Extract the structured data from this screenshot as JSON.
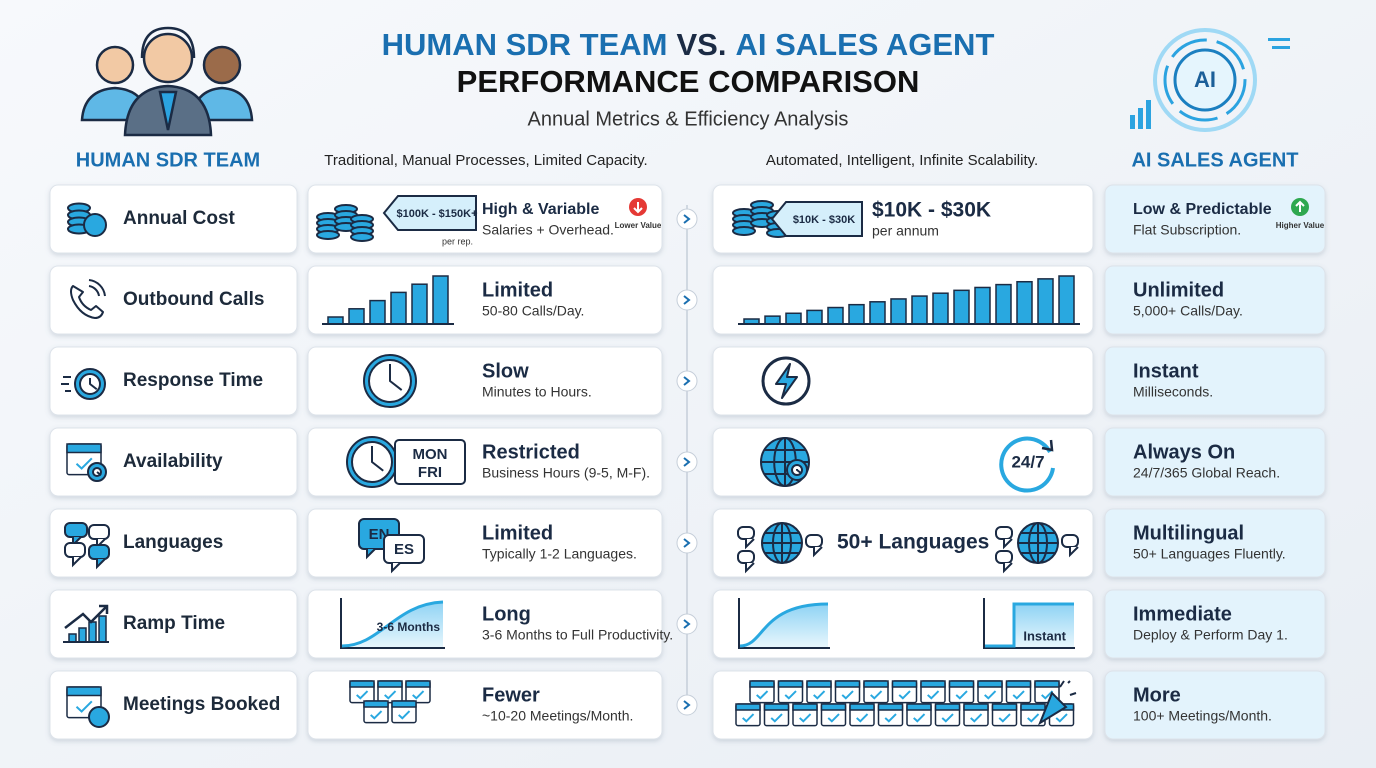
{
  "header": {
    "title_left": "HUMAN SDR TEAM",
    "title_vs": "VS.",
    "title_right": "AI SALES AGENT",
    "title_line2": "PERFORMANCE COMPARISON",
    "subtitle": "Annual Metrics & Efficiency Analysis",
    "ai_badge": "AI"
  },
  "columns": {
    "human_heading": "HUMAN SDR TEAM",
    "human_tagline": "Traditional, Manual Processes, Limited Capacity.",
    "ai_tagline": "Automated, Intelligent, Infinite Scalability.",
    "ai_heading": "AI SALES AGENT"
  },
  "rows": [
    {
      "metric": "Annual Cost",
      "human": {
        "title": "High & Variable",
        "detail": "Salaries + Overhead.",
        "tag": "$100K - $150K+",
        "tag_note": "per rep.",
        "badge": "Lower Value"
      },
      "ai": {
        "tag": "$10K - $30K",
        "figure": "$10K - $30K",
        "figure_note": "per annum"
      },
      "summary": {
        "title": "Low & Predictable",
        "detail": "Flat Subscription.",
        "badge": "Higher Value"
      }
    },
    {
      "metric": "Outbound Calls",
      "human": {
        "title": "Limited",
        "detail": "50-80 Calls/Day."
      },
      "summary": {
        "title": "Unlimited",
        "detail": "5,000+ Calls/Day."
      }
    },
    {
      "metric": "Response Time",
      "human": {
        "title": "Slow",
        "detail": "Minutes to Hours."
      },
      "summary": {
        "title": "Instant",
        "detail": "Milliseconds."
      }
    },
    {
      "metric": "Availability",
      "human": {
        "title": "Restricted",
        "detail": "Business Hours (9-5, M-F).",
        "icon_labels": [
          "MON",
          "FRI"
        ]
      },
      "ai": {
        "icon_label": "24/7"
      },
      "summary": {
        "title": "Always On",
        "detail": "24/7/365 Global Reach."
      }
    },
    {
      "metric": "Languages",
      "human": {
        "title": "Limited",
        "detail": "Typically 1-2 Languages.",
        "icon_labels": [
          "EN",
          "ES"
        ]
      },
      "ai": {
        "figure": "50+ Languages"
      },
      "summary": {
        "title": "Multilingual",
        "detail": "50+ Languages Fluently."
      }
    },
    {
      "metric": "Ramp Time",
      "human": {
        "title": "Long",
        "detail": "3-6 Months to Full Productivity.",
        "icon_label": "3-6 Months"
      },
      "ai": {
        "icon_label": "Instant"
      },
      "summary": {
        "title": "Immediate",
        "detail": "Deploy & Perform Day 1."
      }
    },
    {
      "metric": "Meetings Booked",
      "human": {
        "title": "Fewer",
        "detail": "~10-20 Meetings/Month."
      },
      "summary": {
        "title": "More",
        "detail": "100+ Meetings/Month."
      }
    }
  ]
}
